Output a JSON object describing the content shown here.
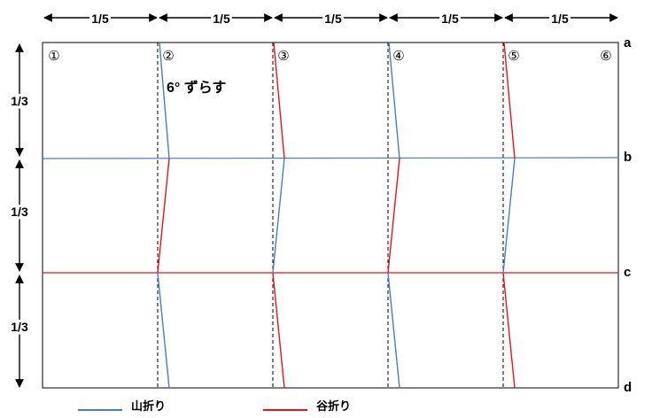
{
  "colors": {
    "mountain": "#4a7ebb",
    "valley": "#e8141c",
    "outline": "#000000",
    "guide": "#000000"
  },
  "top_dimensions": [
    "1/5",
    "1/5",
    "1/5",
    "1/5",
    "1/5"
  ],
  "left_dimensions": [
    "1/3",
    "1/3",
    "1/3"
  ],
  "column_numbers": [
    "①",
    "②",
    "③",
    "④",
    "⑤",
    "⑥"
  ],
  "row_labels": [
    "a",
    "b",
    "c",
    "d"
  ],
  "note": "6° ずらす",
  "shift_angle_deg": 6,
  "legend": {
    "mountain": {
      "label": "山折り",
      "icon": "blue-line-icon"
    },
    "valley": {
      "label": "谷折り",
      "icon": "red-line-icon"
    }
  }
}
